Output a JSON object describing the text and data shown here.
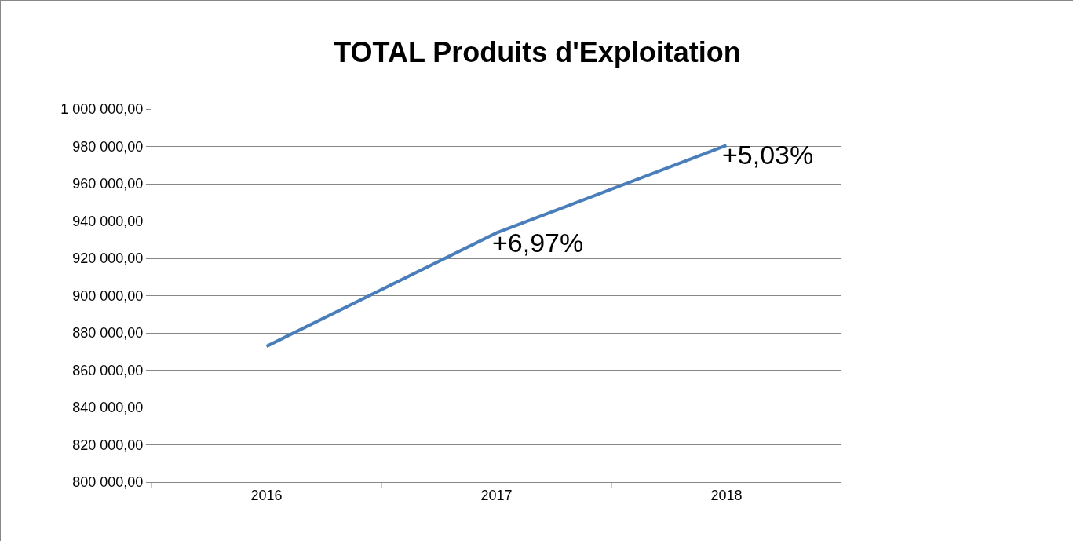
{
  "chart_data": {
    "type": "line",
    "title": "TOTAL Produits d'Exploitation",
    "categories": [
      "2016",
      "2017",
      "2018"
    ],
    "series": [
      {
        "color": "#4a7ebb",
        "values": [
          872800,
          933600,
          980600
        ]
      }
    ],
    "ylim": [
      800000,
      1000000
    ],
    "yticks": [
      {
        "value": 800000,
        "label": "800 000,00"
      },
      {
        "value": 820000,
        "label": "820 000,00"
      },
      {
        "value": 840000,
        "label": "840 000,00"
      },
      {
        "value": 860000,
        "label": "860 000,00"
      },
      {
        "value": 880000,
        "label": "880 000,00"
      },
      {
        "value": 900000,
        "label": "900 000,00"
      },
      {
        "value": 920000,
        "label": "920 000,00"
      },
      {
        "value": 940000,
        "label": "940 000,00"
      },
      {
        "value": 960000,
        "label": "960 000,00"
      },
      {
        "value": 980000,
        "label": "980 000,00"
      },
      {
        "value": 1000000,
        "label": "1 000 000,00"
      }
    ],
    "annotations": [
      {
        "text": "+6,97%",
        "x": "2017",
        "y": 933600
      },
      {
        "text": "+5,03%",
        "x": "2018",
        "y": 980600
      }
    ],
    "grid": "y",
    "marker": "none",
    "line_style": "solid"
  }
}
